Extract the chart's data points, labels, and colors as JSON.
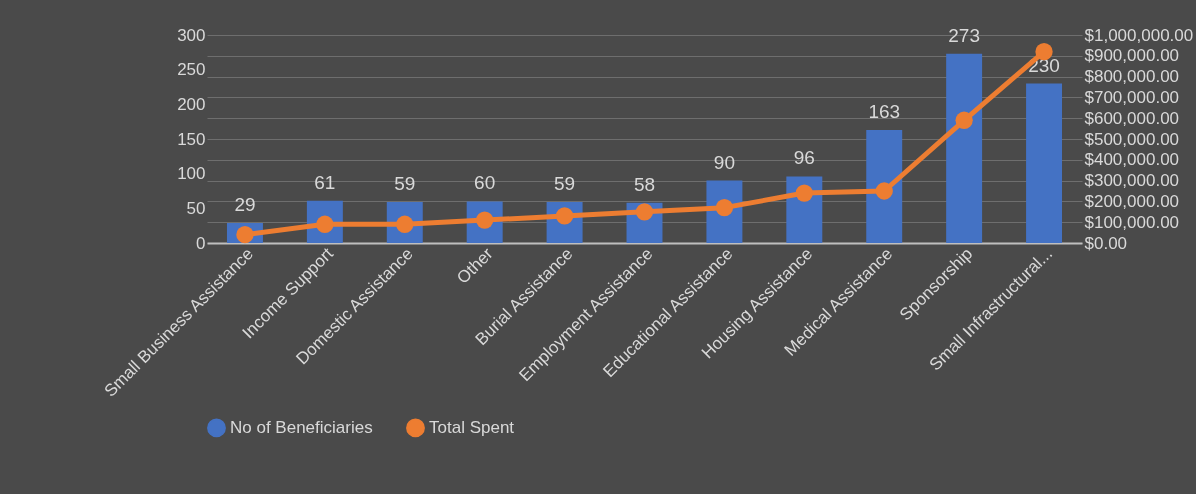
{
  "chart_data": {
    "type": "bar",
    "categories": [
      "Small Business Assistance",
      "Income Support",
      "Domestic Assistance",
      "Other",
      "Burial Assistance",
      "Employment Assistance",
      "Educational Assistance",
      "Housing Assistance",
      "Medical Assistance",
      "Sponsorship",
      "Small Infrastructural..."
    ],
    "series": [
      {
        "name": "No of Beneficiaries",
        "color": "#4472c4",
        "values": [
          29,
          61,
          59,
          60,
          59,
          58,
          90,
          96,
          163,
          273,
          230
        ],
        "value_labels": [
          "29",
          "61",
          "59",
          "60",
          "59",
          "58",
          "90",
          "96",
          "163",
          "273",
          "230"
        ]
      },
      {
        "name": "Total Spent",
        "type": "line",
        "axis": "y2",
        "color": "#ed7d31",
        "values": [
          40000,
          90000,
          90000,
          110000,
          130000,
          150000,
          170000,
          240000,
          250000,
          590000,
          920000
        ]
      }
    ],
    "ylim": [
      0,
      300
    ],
    "yticks": [
      0,
      50,
      100,
      150,
      200,
      250,
      300
    ],
    "y2lim": [
      0,
      1000000
    ],
    "y2ticks": [
      {
        "value": 0,
        "label": "$0.00"
      },
      {
        "value": 100000,
        "label": "$100,000.00"
      },
      {
        "value": 200000,
        "label": "$200,000.00"
      },
      {
        "value": 300000,
        "label": "$300,000.00"
      },
      {
        "value": 400000,
        "label": "$400,000.00"
      },
      {
        "value": 500000,
        "label": "$500,000.00"
      },
      {
        "value": 600000,
        "label": "$600,000.00"
      },
      {
        "value": 700000,
        "label": "$700,000.00"
      },
      {
        "value": 800000,
        "label": "$800,000.00"
      },
      {
        "value": 900000,
        "label": "$900,000.00"
      },
      {
        "value": 1000000,
        "label": "$1,000,000.00"
      }
    ],
    "grid": true,
    "legend": "bottom",
    "marker": "circle"
  }
}
